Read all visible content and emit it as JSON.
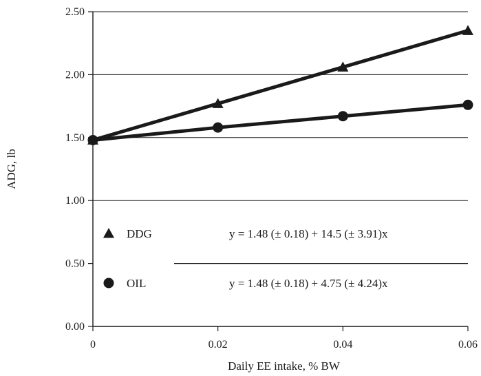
{
  "chart_data": {
    "type": "line",
    "xlabel": "Daily EE intake, % BW",
    "ylabel": "ADG, lb",
    "xlim": [
      0,
      0.06
    ],
    "ylim": [
      0,
      2.5
    ],
    "x_ticks": [
      0,
      0.02,
      0.04,
      0.06
    ],
    "x_tick_labels": [
      "0",
      "0.02",
      "0.04",
      "0.06"
    ],
    "y_ticks": [
      0,
      0.5,
      1.0,
      1.5,
      2.0,
      2.5
    ],
    "y_tick_labels": [
      "0.00",
      "0.50",
      "1.00",
      "1.50",
      "2.00",
      "2.50"
    ],
    "grid": "horizontal",
    "legend_placement": "inside lower-left",
    "series": [
      {
        "name": "DDG",
        "marker": "triangle",
        "color": "#1a1a1a",
        "x": [
          0,
          0.02,
          0.04,
          0.06
        ],
        "y": [
          1.48,
          1.77,
          2.06,
          2.35
        ],
        "equation": "y = 1.48 (± 0.18) + 14.5 (± 3.91)x"
      },
      {
        "name": "OIL",
        "marker": "circle",
        "color": "#1a1a1a",
        "x": [
          0,
          0.02,
          0.04,
          0.06
        ],
        "y": [
          1.48,
          1.58,
          1.67,
          1.76
        ],
        "equation": "y = 1.48 (± 0.18) + 4.75 (± 4.24)x"
      }
    ]
  }
}
